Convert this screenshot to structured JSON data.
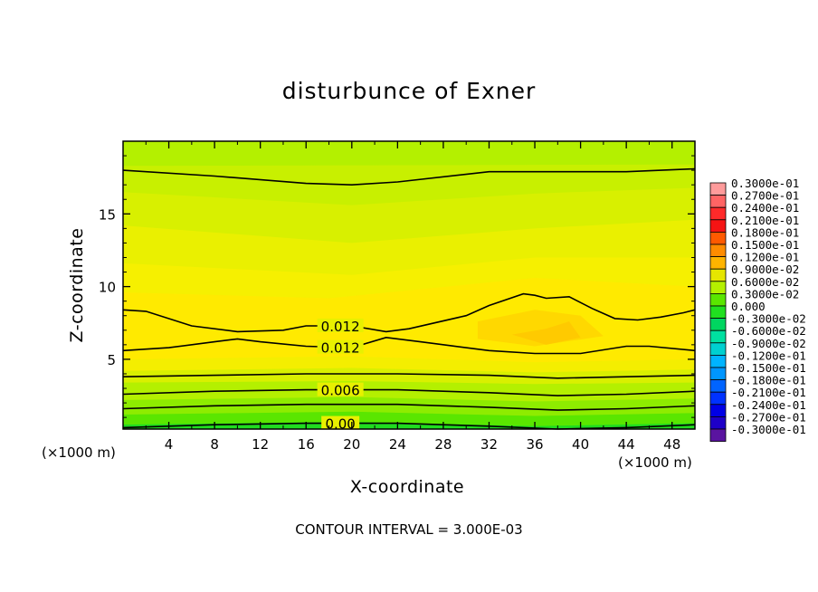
{
  "chart_data": {
    "type": "contour",
    "title": "disturbunce of Exner",
    "xlabel": "X-coordinate",
    "ylabel": "Z-coordinate",
    "x_unit": "(×1000 m)",
    "annotation": "CONTOUR INTERVAL = 3.000E-03",
    "xlim": [
      0,
      50
    ],
    "ylim": [
      0.2,
      20
    ],
    "x_ticks": [
      4,
      8,
      12,
      16,
      20,
      24,
      28,
      32,
      36,
      40,
      44,
      48
    ],
    "y_ticks": [
      5,
      10,
      15
    ],
    "contour_interval": 0.003,
    "colorbar": {
      "levels": [
        "0.3000e-01",
        "0.2700e-01",
        "0.2400e-01",
        "0.2100e-01",
        "0.1800e-01",
        "0.1500e-01",
        "0.1200e-01",
        "0.9000e-02",
        "0.6000e-02",
        "0.3000e-02",
        "0.000",
        "-0.3000e-02",
        "-0.6000e-02",
        "-0.9000e-02",
        "-0.1200e-01",
        "-0.1500e-01",
        "-0.1800e-01",
        "-0.2100e-01",
        "-0.2400e-01",
        "-0.2700e-01",
        "-0.3000e-01"
      ],
      "colors": [
        "#ff9b9b",
        "#ff6464",
        "#ff2a2a",
        "#f51414",
        "#ff5a00",
        "#ff8c00",
        "#ffb400",
        "#e6e600",
        "#b4f000",
        "#5ae600",
        "#20e020",
        "#00d660",
        "#00e0a0",
        "#00d0d0",
        "#00b4ff",
        "#0096ff",
        "#0064ff",
        "#0032ff",
        "#0000e6",
        "#1e00c8",
        "#5a14a0"
      ]
    },
    "contour_lines": [
      {
        "label": "",
        "x": [
          0,
          8,
          16,
          20,
          24,
          32,
          40,
          44,
          50
        ],
        "y": [
          18.0,
          17.6,
          17.1,
          17.0,
          17.2,
          17.9,
          17.9,
          17.9,
          18.1
        ]
      },
      {
        "label": "0.012",
        "x": [
          0,
          2,
          6,
          10,
          14,
          16,
          20,
          23,
          25,
          30,
          32,
          35,
          36,
          37,
          39,
          41,
          43,
          45,
          47,
          49,
          50
        ],
        "y": [
          8.4,
          8.3,
          7.3,
          6.9,
          7.0,
          7.3,
          7.3,
          6.9,
          7.1,
          8.0,
          8.7,
          9.5,
          9.4,
          9.2,
          9.3,
          8.5,
          7.8,
          7.7,
          7.9,
          8.2,
          8.4
        ]
      },
      {
        "label": "0.012",
        "x": [
          0,
          4,
          8,
          10,
          12,
          16,
          20,
          23,
          26,
          32,
          36,
          40,
          44,
          46,
          50
        ],
        "y": [
          5.6,
          5.8,
          6.2,
          6.4,
          6.2,
          5.9,
          5.8,
          6.5,
          6.2,
          5.6,
          5.4,
          5.4,
          5.9,
          5.9,
          5.6
        ]
      },
      {
        "label": "",
        "x": [
          0,
          8,
          16,
          24,
          32,
          38,
          44,
          50
        ],
        "y": [
          3.8,
          3.9,
          4.0,
          4.0,
          3.9,
          3.7,
          3.8,
          3.9
        ]
      },
      {
        "label": "0.006",
        "x": [
          0,
          8,
          16,
          24,
          32,
          38,
          44,
          50
        ],
        "y": [
          2.6,
          2.8,
          2.9,
          2.9,
          2.7,
          2.5,
          2.6,
          2.8
        ]
      },
      {
        "label": "",
        "x": [
          0,
          8,
          16,
          24,
          32,
          38,
          44,
          50
        ],
        "y": [
          1.6,
          1.8,
          1.9,
          1.9,
          1.7,
          1.5,
          1.6,
          1.8
        ]
      },
      {
        "label": "0.00",
        "x": [
          0,
          8,
          16,
          24,
          32,
          38,
          44,
          50
        ],
        "y": [
          0.3,
          0.5,
          0.6,
          0.6,
          0.4,
          0.2,
          0.3,
          0.5
        ]
      }
    ],
    "filled_bands": [
      {
        "color": "#c8f000",
        "top": [
          {
            "x": 0,
            "y": 18.3
          },
          {
            "x": 50,
            "y": 18.4
          }
        ]
      },
      {
        "color": "#d8f000",
        "top": [
          {
            "x": 0,
            "y": 16.5
          },
          {
            "x": 20,
            "y": 15.6
          },
          {
            "x": 36,
            "y": 16.4
          },
          {
            "x": 50,
            "y": 16.8
          }
        ]
      },
      {
        "color": "#eaf000",
        "top": [
          {
            "x": 0,
            "y": 14.2
          },
          {
            "x": 20,
            "y": 13.0
          },
          {
            "x": 36,
            "y": 14.0
          },
          {
            "x": 50,
            "y": 14.6
          }
        ]
      },
      {
        "color": "#f6f000",
        "top": [
          {
            "x": 0,
            "y": 11.6
          },
          {
            "x": 20,
            "y": 10.8
          },
          {
            "x": 36,
            "y": 12.0
          },
          {
            "x": 50,
            "y": 12.0
          }
        ]
      },
      {
        "color": "#ffea00",
        "top": [
          {
            "x": 0,
            "y": 9.6
          },
          {
            "x": 18,
            "y": 9.2
          },
          {
            "x": 36,
            "y": 10.6
          },
          {
            "x": 50,
            "y": 10.0
          }
        ]
      },
      {
        "color": "#ffd800",
        "top": [
          {
            "x": 31,
            "y": 7.6
          },
          {
            "x": 36,
            "y": 8.4
          },
          {
            "x": 40,
            "y": 8.0
          },
          {
            "x": 42,
            "y": 6.6
          },
          {
            "x": 36,
            "y": 5.9
          },
          {
            "x": 31,
            "y": 6.4
          }
        ],
        "closed": true
      },
      {
        "color": "#ffca00",
        "top": [
          {
            "x": 34,
            "y": 6.7
          },
          {
            "x": 37,
            "y": 7.1
          },
          {
            "x": 39,
            "y": 7.6
          },
          {
            "x": 40,
            "y": 6.5
          },
          {
            "x": 37,
            "y": 6.0
          }
        ],
        "closed": true
      },
      {
        "color": "#f4ee00",
        "bottom": [
          {
            "x": 0,
            "y": 5.0
          },
          {
            "x": 20,
            "y": 5.2
          },
          {
            "x": 36,
            "y": 4.8
          },
          {
            "x": 50,
            "y": 5.0
          }
        ]
      },
      {
        "color": "#d9f000",
        "bottom": [
          {
            "x": 0,
            "y": 4.2
          },
          {
            "x": 20,
            "y": 4.4
          },
          {
            "x": 36,
            "y": 4.1
          },
          {
            "x": 50,
            "y": 4.3
          }
        ]
      },
      {
        "color": "#b4f000",
        "bottom": [
          {
            "x": 0,
            "y": 3.4
          },
          {
            "x": 20,
            "y": 3.5
          },
          {
            "x": 36,
            "y": 3.3
          },
          {
            "x": 50,
            "y": 3.4
          }
        ]
      },
      {
        "color": "#8eec00",
        "bottom": [
          {
            "x": 0,
            "y": 2.2
          },
          {
            "x": 20,
            "y": 2.4
          },
          {
            "x": 36,
            "y": 2.1
          },
          {
            "x": 50,
            "y": 2.3
          }
        ]
      },
      {
        "color": "#5ae600",
        "bottom": [
          {
            "x": 0,
            "y": 1.2
          },
          {
            "x": 20,
            "y": 1.4
          },
          {
            "x": 36,
            "y": 1.1
          },
          {
            "x": 50,
            "y": 1.3
          }
        ]
      },
      {
        "color": "#20dc20",
        "bottom": [
          {
            "x": 0,
            "y": 0.5
          },
          {
            "x": 20,
            "y": 0.7
          },
          {
            "x": 36,
            "y": 0.4
          },
          {
            "x": 50,
            "y": 0.6
          }
        ]
      }
    ]
  }
}
